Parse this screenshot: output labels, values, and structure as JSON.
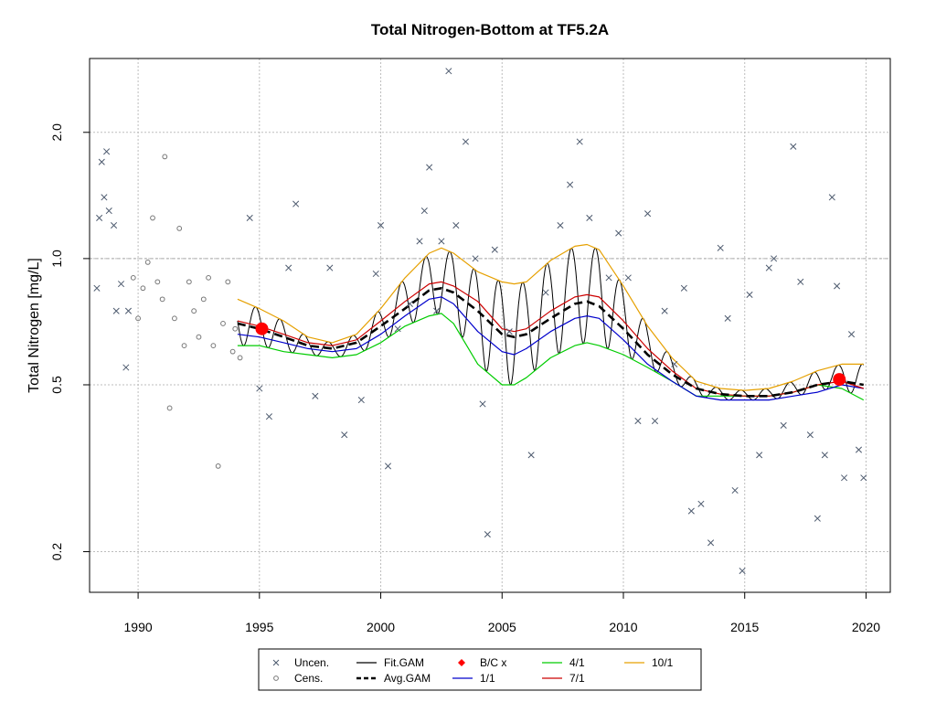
{
  "chart_data": {
    "type": "scatter",
    "title": "Total Nitrogen-Bottom at TF5.2A",
    "xlabel": "",
    "ylabel": "Total Nitrogen [mg/L]",
    "xlim": [
      1988.0,
      2021.0
    ],
    "ylim": [
      0.16,
      3.0
    ],
    "y_scale": "log",
    "x_ticks": [
      1990,
      1995,
      2000,
      2005,
      2010,
      2015,
      2020
    ],
    "y_ticks": [
      0.2,
      0.5,
      1.0,
      2.0
    ],
    "y_tick_labels": [
      "0.2",
      "0.5",
      "1.0",
      "2.0"
    ],
    "grid": true,
    "reference_line_y": 1.0,
    "legend": {
      "position": "bottom",
      "entries": [
        {
          "label": "Uncen.",
          "symbol": "x",
          "color": "#4d5a6e"
        },
        {
          "label": "Cens.",
          "symbol": "circle",
          "color": "#777777"
        },
        {
          "label": "Fit.GAM",
          "symbol": "line",
          "color": "#000000"
        },
        {
          "label": "Avg.GAM",
          "symbol": "dashed",
          "color": "#000000"
        },
        {
          "label": "B/C x",
          "symbol": "diamond",
          "color": "#ff0000"
        },
        {
          "label": "1/1",
          "symbol": "line",
          "color": "#0000cc"
        },
        {
          "label": "4/1",
          "symbol": "line",
          "color": "#00cc00"
        },
        {
          "label": "7/1",
          "symbol": "line",
          "color": "#cc0000"
        },
        {
          "label": "10/1",
          "symbol": "line",
          "color": "#e6a000"
        }
      ]
    },
    "series": [
      {
        "name": "Avg.GAM",
        "x": [
          1994.1,
          1995.0,
          1996.0,
          1997.0,
          1998.0,
          1999.0,
          2000.0,
          2001.0,
          2002.0,
          2002.5,
          2003.0,
          2004.0,
          2005.0,
          2005.5,
          2006.0,
          2007.0,
          2008.0,
          2008.5,
          2009.0,
          2010.0,
          2011.0,
          2012.0,
          2013.0,
          2014.0,
          2015.0,
          2016.0,
          2017.0,
          2018.0,
          2019.0,
          2019.9
        ],
        "y": [
          0.7,
          0.68,
          0.65,
          0.62,
          0.61,
          0.63,
          0.69,
          0.76,
          0.84,
          0.85,
          0.83,
          0.75,
          0.66,
          0.65,
          0.66,
          0.72,
          0.78,
          0.79,
          0.77,
          0.68,
          0.59,
          0.53,
          0.49,
          0.475,
          0.47,
          0.47,
          0.48,
          0.5,
          0.51,
          0.5
        ]
      },
      {
        "name": "1/1",
        "x": [
          1994.1,
          1995.0,
          1996.0,
          1997.0,
          1998.0,
          1999.0,
          2000.0,
          2001.0,
          2002.0,
          2002.5,
          2003.0,
          2004.0,
          2005.0,
          2005.5,
          2006.0,
          2007.0,
          2008.0,
          2008.5,
          2009.0,
          2010.0,
          2011.0,
          2012.0,
          2013.0,
          2014.0,
          2015.0,
          2016.0,
          2017.0,
          2018.0,
          2019.0,
          2019.9
        ],
        "y": [
          0.66,
          0.65,
          0.63,
          0.61,
          0.6,
          0.61,
          0.66,
          0.73,
          0.8,
          0.81,
          0.78,
          0.67,
          0.6,
          0.59,
          0.61,
          0.67,
          0.72,
          0.73,
          0.72,
          0.64,
          0.56,
          0.51,
          0.47,
          0.46,
          0.46,
          0.46,
          0.47,
          0.48,
          0.5,
          0.49
        ]
      },
      {
        "name": "4/1",
        "x": [
          1994.1,
          1995.0,
          1996.0,
          1997.0,
          1998.0,
          1999.0,
          2000.0,
          2001.0,
          2002.0,
          2002.5,
          2003.0,
          2004.0,
          2005.0,
          2005.5,
          2006.0,
          2007.0,
          2008.0,
          2008.5,
          2009.0,
          2010.0,
          2011.0,
          2012.0,
          2013.0,
          2014.0,
          2015.0,
          2016.0,
          2017.0,
          2018.0,
          2019.0,
          2019.9
        ],
        "y": [
          0.62,
          0.62,
          0.6,
          0.59,
          0.58,
          0.59,
          0.63,
          0.69,
          0.73,
          0.74,
          0.7,
          0.56,
          0.5,
          0.5,
          0.52,
          0.58,
          0.62,
          0.63,
          0.62,
          0.59,
          0.55,
          0.51,
          0.47,
          0.47,
          0.47,
          0.47,
          0.48,
          0.5,
          0.49,
          0.46
        ]
      },
      {
        "name": "7/1",
        "x": [
          1994.1,
          1995.0,
          1996.0,
          1997.0,
          1998.0,
          1999.0,
          2000.0,
          2001.0,
          2002.0,
          2002.5,
          2003.0,
          2004.0,
          2005.0,
          2005.5,
          2006.0,
          2007.0,
          2008.0,
          2008.5,
          2009.0,
          2010.0,
          2011.0,
          2012.0,
          2013.0,
          2014.0,
          2015.0,
          2016.0,
          2017.0,
          2018.0,
          2019.0,
          2019.9
        ],
        "y": [
          0.71,
          0.69,
          0.66,
          0.63,
          0.62,
          0.64,
          0.71,
          0.79,
          0.87,
          0.88,
          0.86,
          0.79,
          0.68,
          0.67,
          0.68,
          0.75,
          0.81,
          0.82,
          0.81,
          0.71,
          0.61,
          0.54,
          0.49,
          0.475,
          0.47,
          0.47,
          0.48,
          0.5,
          0.51,
          0.49
        ]
      },
      {
        "name": "10/1",
        "x": [
          1994.1,
          1995.0,
          1996.0,
          1997.0,
          1998.0,
          1999.0,
          2000.0,
          2001.0,
          2002.0,
          2002.5,
          2003.0,
          2004.0,
          2005.0,
          2005.5,
          2006.0,
          2007.0,
          2008.0,
          2008.5,
          2009.0,
          2010.0,
          2011.0,
          2012.0,
          2013.0,
          2014.0,
          2015.0,
          2016.0,
          2017.0,
          2018.0,
          2019.0,
          2019.9
        ],
        "y": [
          0.8,
          0.76,
          0.71,
          0.65,
          0.63,
          0.66,
          0.76,
          0.9,
          1.03,
          1.06,
          1.03,
          0.93,
          0.88,
          0.87,
          0.88,
          0.99,
          1.07,
          1.08,
          1.05,
          0.86,
          0.69,
          0.58,
          0.51,
          0.49,
          0.485,
          0.49,
          0.51,
          0.54,
          0.56,
          0.56
        ]
      },
      {
        "name": "B/C x",
        "x": [
          1995.1,
          2018.9
        ],
        "y": [
          0.68,
          0.515
        ]
      },
      {
        "name": "Uncen.",
        "x": [
          1988.3,
          1988.4,
          1988.5,
          1988.6,
          1988.7,
          1988.8,
          1989.0,
          1989.1,
          1989.3,
          1989.5,
          1989.6,
          1994.6,
          1995.0,
          1995.4,
          1996.2,
          1996.5,
          1997.3,
          1997.9,
          1998.5,
          1999.2,
          1999.8,
          2000.0,
          2000.3,
          2000.7,
          2001.2,
          2001.6,
          2001.8,
          2002.0,
          2002.3,
          2002.5,
          2002.8,
          2003.1,
          2003.5,
          2003.9,
          2004.2,
          2004.4,
          2004.7,
          2005.3,
          2006.2,
          2006.8,
          2007.4,
          2007.8,
          2008.2,
          2008.6,
          2009.4,
          2009.8,
          2010.2,
          2010.6,
          2011.0,
          2011.3,
          2011.7,
          2012.1,
          2012.5,
          2012.8,
          2013.2,
          2013.6,
          2014.0,
          2014.3,
          2014.6,
          2014.9,
          2015.2,
          2015.6,
          2016.0,
          2016.2,
          2016.6,
          2017.0,
          2017.3,
          2017.7,
          2018.0,
          2018.3,
          2018.6,
          2018.8,
          2019.1,
          2019.4,
          2019.7,
          2019.9
        ],
        "y": [
          0.85,
          1.25,
          1.7,
          1.4,
          1.8,
          1.3,
          1.2,
          0.75,
          0.87,
          0.55,
          0.75,
          1.25,
          0.49,
          0.42,
          0.95,
          1.35,
          0.47,
          0.95,
          0.38,
          0.46,
          0.92,
          1.2,
          0.32,
          0.68,
          0.78,
          1.1,
          1.3,
          1.65,
          0.75,
          1.1,
          2.8,
          1.2,
          1.9,
          1.0,
          0.45,
          0.22,
          1.05,
          0.67,
          0.34,
          0.83,
          1.2,
          1.5,
          1.9,
          1.25,
          0.9,
          1.15,
          0.9,
          0.41,
          1.28,
          0.41,
          0.75,
          0.56,
          0.85,
          0.25,
          0.26,
          0.21,
          1.06,
          0.72,
          0.28,
          0.18,
          0.82,
          0.34,
          0.95,
          1.0,
          0.4,
          1.85,
          0.88,
          0.38,
          0.24,
          0.34,
          1.4,
          0.86,
          0.3,
          0.66,
          0.35,
          0.3
        ]
      },
      {
        "name": "Cens.",
        "x": [
          1989.8,
          1990.0,
          1990.2,
          1990.4,
          1990.6,
          1990.8,
          1991.0,
          1991.1,
          1991.3,
          1991.5,
          1991.7,
          1991.9,
          1992.1,
          1992.3,
          1992.5,
          1992.7,
          1992.9,
          1993.1,
          1993.3,
          1993.5,
          1993.7,
          1993.9,
          1994.0,
          1994.2
        ],
        "y": [
          0.9,
          0.72,
          0.85,
          0.98,
          1.25,
          0.88,
          0.8,
          1.75,
          0.44,
          0.72,
          1.18,
          0.62,
          0.88,
          0.75,
          0.65,
          0.8,
          0.9,
          0.62,
          0.32,
          0.7,
          0.88,
          0.6,
          0.68,
          0.58
        ]
      }
    ]
  }
}
